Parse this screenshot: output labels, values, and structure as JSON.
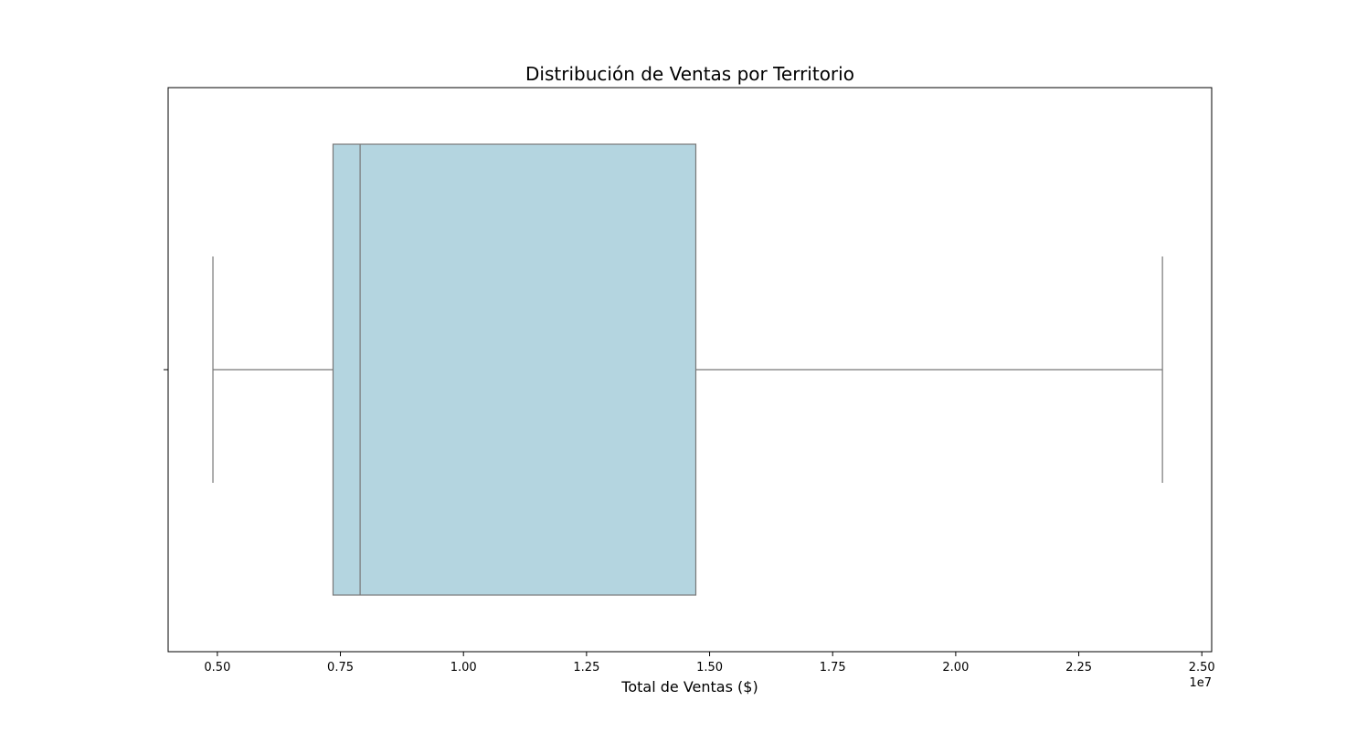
{
  "chart_data": {
    "type": "boxplot",
    "orientation": "horizontal",
    "title": "Distribución de Ventas por Territorio",
    "xlabel": "Total de Ventas ($)",
    "ylabel": "",
    "x_scale_offset_label": "1e7",
    "xlim": [
      0.4,
      2.52
    ],
    "x_ticks": [
      0.5,
      0.75,
      1.0,
      1.25,
      1.5,
      1.75,
      2.0,
      2.25,
      2.5
    ],
    "x_tick_labels": [
      "0.50",
      "0.75",
      "1.00",
      "1.25",
      "1.50",
      "1.75",
      "2.00",
      "2.25",
      "2.50"
    ],
    "box": {
      "whisker_low": 0.491,
      "q1": 0.735,
      "median": 0.79,
      "q3": 1.472,
      "whisker_high": 2.42
    },
    "grid": false,
    "legend": "none",
    "colors": {
      "box_fill": "#b4d5e0",
      "box_edge": "#777777",
      "axes": "#000000"
    }
  }
}
